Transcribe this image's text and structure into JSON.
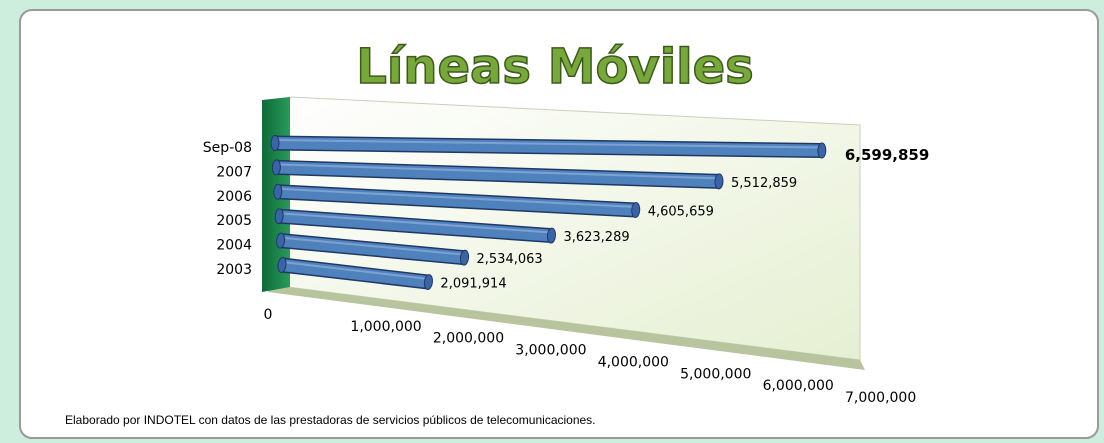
{
  "chart_data": {
    "type": "bar3d_horizontal",
    "title": "Líneas Móviles",
    "categories": [
      "Sep-08",
      "2007",
      "2006",
      "2005",
      "2004",
      "2003"
    ],
    "values": [
      6599859,
      5512859,
      4605659,
      3623289,
      2534063,
      2091914
    ],
    "value_labels": [
      "6,599,859",
      "5,512,859",
      "4,605,659",
      "3,623,289",
      "2,534,063",
      "2,091,914"
    ],
    "color": "#4f81bd",
    "xlim": [
      0,
      7000000
    ],
    "xticks": [
      0,
      {
        "value": 1000000,
        "label": "1,000,000"
      },
      {
        "value": 2000000,
        "label": "2,000,000"
      },
      {
        "value": 3000000,
        "label": "3,000,000"
      },
      {
        "value": 4000000,
        "label": "4,000,000"
      },
      {
        "value": 5000000,
        "label": "5,000,000"
      },
      {
        "value": 6000000,
        "label": "6,000,000"
      },
      {
        "value": 7000000,
        "label": "7,000,000"
      }
    ],
    "note": "Elaborado por INDOTEL con datos de las prestadoras de servicios públicos de telecomunicaciones."
  }
}
